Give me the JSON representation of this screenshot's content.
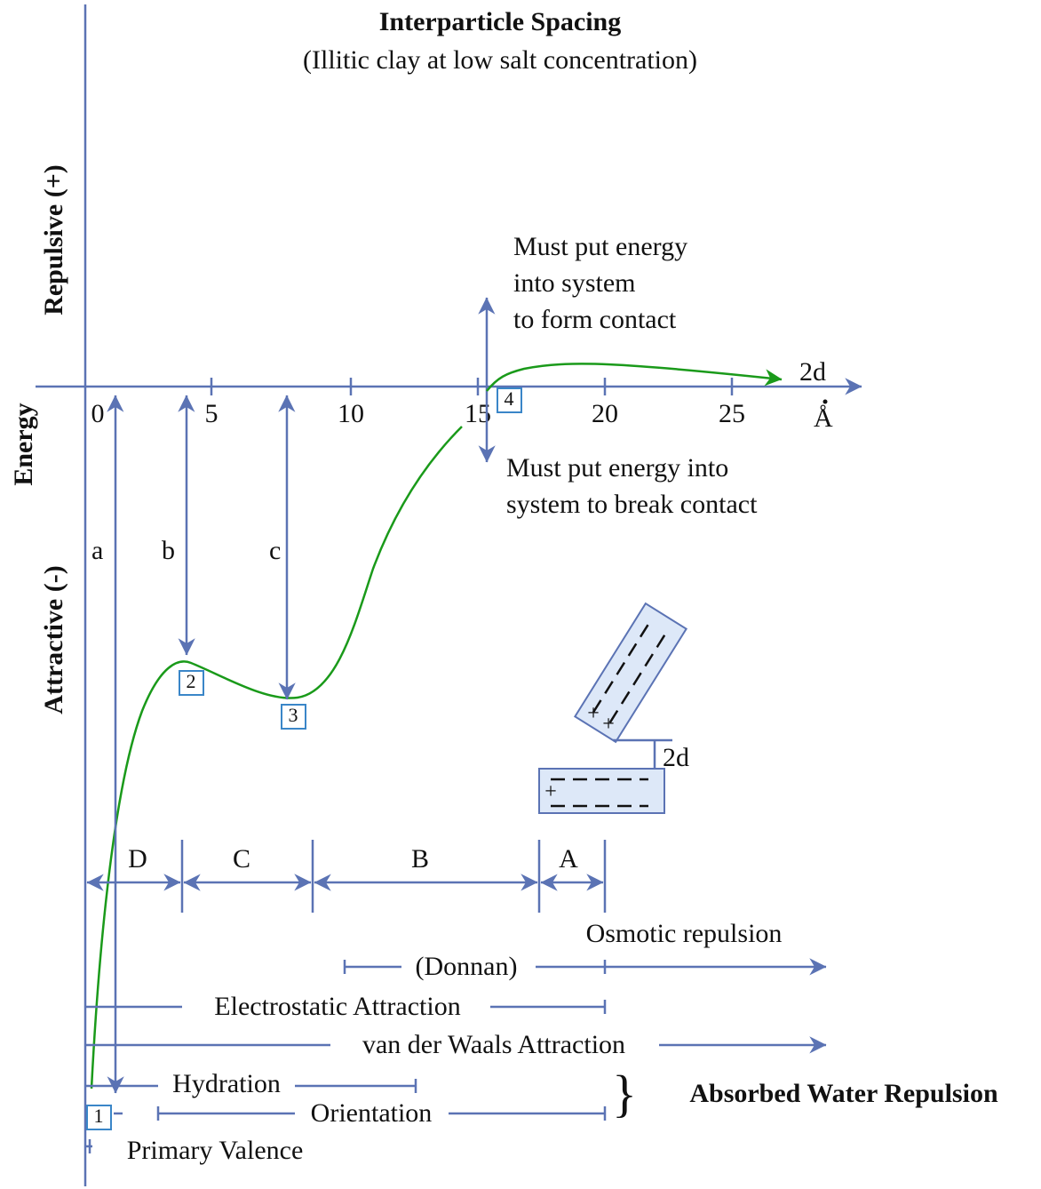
{
  "header": {
    "title": "Interparticle Spacing",
    "subtitle": "(Illitic clay at low salt concentration)"
  },
  "axes": {
    "y_top": "Repulsive (+)",
    "y_middle": "Energy",
    "y_bottom": "Attractive (-)",
    "x_ticks": [
      0,
      5,
      10,
      15,
      20,
      25
    ],
    "x_end": "2d",
    "x_unit": "Å"
  },
  "annotations": {
    "form_contact": [
      "Must put energy",
      "into system",
      "to form contact"
    ],
    "break_contact": [
      "Must put energy into",
      "system to break contact"
    ]
  },
  "arrows": {
    "a": "a",
    "b": "b",
    "c": "c"
  },
  "points": [
    "1",
    "2",
    "3",
    "4"
  ],
  "zones": [
    "D",
    "C",
    "B",
    "A"
  ],
  "ranges": {
    "osmotic": "Osmotic repulsion",
    "donnan": "(Donnan)",
    "electrostatic": "Electrostatic Attraction",
    "van_der_waals": "van der Waals Attraction",
    "hydration": "Hydration",
    "orientation": "Orientation",
    "primary_valence": "Primary Valence",
    "absorbed_water": "Absorbed Water Repulsion"
  },
  "particles": {
    "gap": "2d",
    "plus": "+"
  }
}
